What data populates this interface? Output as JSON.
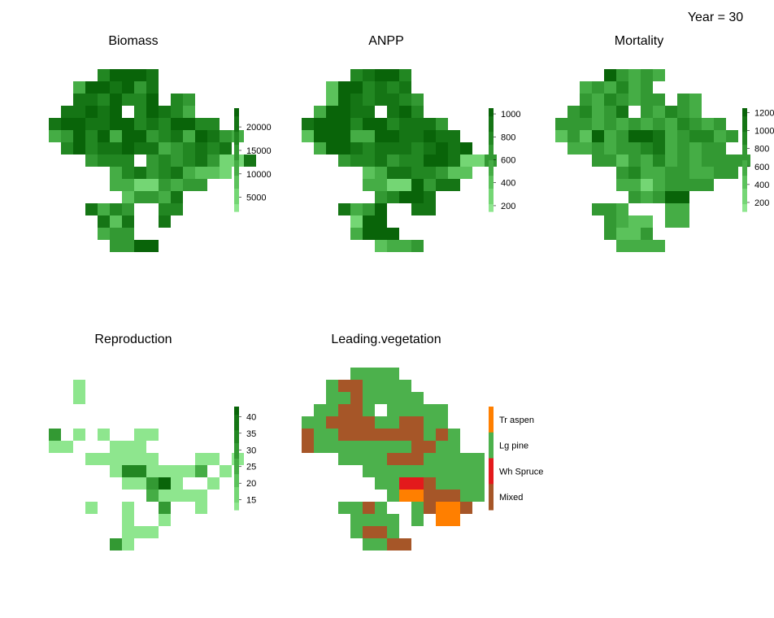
{
  "page": {
    "year_label": "Year = 30"
  },
  "palette": {
    "green_scale": [
      "#8ee68e",
      "#74d674",
      "#5bc25b",
      "#45ad45",
      "#339933",
      "#228722",
      "#157515",
      "#096409"
    ],
    "leading_veg": {
      "Tr aspen": "#ff7f00",
      "Lg pine": "#4cb14c",
      "Wh Spruce": "#e31a1c",
      "Mixed": "#a65628"
    }
  },
  "chart_data": [
    {
      "type": "heatmap",
      "title": "Biomass",
      "legend": {
        "ticks": [
          "5000",
          "10000",
          "15000",
          "20000"
        ],
        "range": [
          2000,
          24000
        ]
      },
      "grid": [
        "..........................",
        "....57776.................",
        "..3776746.................",
        "..6657557.54..............",
        ".66767.57653..............",
        "67766775657755............",
        "3475737745637643..........",
        ".57566766345656...........",
        "...4555.454564116.........",
        ".....3564563221...........",
        ".....33114344.............",
        "......24436...............",
        "...6354..55...............",
        "....626..6................",
        "....344...................",
        ".....4477................."
      ]
    },
    {
      "type": "heatmap",
      "title": "ANPP",
      "legend": {
        "ticks": [
          "200",
          "400",
          "600",
          "800",
          "1000"
        ],
        "range": [
          150,
          1050
        ]
      },
      "grid": [
        "..........................",
        "....56775.................",
        "..2775656.................",
        "..27656654................",
        ".37766.675................",
        "677757756664..............",
        "2777337766766.............",
        ".3776566656767............",
        "...4556455776114..........",
        ".....236655422............",
        ".....33117466.............",
        "......45776...............",
        "...6347..66...............",
        "....177...................",
        "....3777..................",
        "......2334................"
      ]
    },
    {
      "type": "heatmap",
      "title": "Mortality",
      "legend": {
        "ticks": [
          "200",
          "400",
          "600",
          "800",
          "1000",
          "1200"
        ],
        "range": [
          100,
          1250
        ]
      },
      "grid": [
        "..........................",
        "....74343.................",
        "..343534..................",
        "..4354344.43..............",
        ".45346.43543..............",
        "44434343435434............",
        "242734776345534...........",
        ".3343445634344............",
        "...4424353434444..........",
        ".....4533443344...........",
        ".....33134444.............",
        "......43477...............",
        "...443...33...............",
        "....4322.33...............",
        "....4224..................",
        ".....3333................."
      ]
    },
    {
      "type": "heatmap",
      "title": "Reproduction",
      "legend": {
        "ticks": [
          "15",
          "20",
          "25",
          "30",
          "35",
          "40"
        ],
        "range": [
          12,
          43
        ]
      },
      "grid": [
        "..........................",
        "..........................",
        "..0.......................",
        "..0.......................",
        "..........................",
        "..........................",
        "4.0.0..00.................",
        "00...000..................",
        "...000000...00.0..........",
        ".....05500003.0...........",
        "......00470..0............",
        "........30000.............",
        "...0..0..4..0.............",
        "......0..0................",
        "......000.................",
        ".....40..................."
      ]
    },
    {
      "type": "heatmap",
      "title": "Leading.vegetation",
      "legend": {
        "entries": [
          "Tr aspen",
          "Lg pine",
          "Wh Spruce",
          "Mixed"
        ]
      },
      "grid": [
        "..........................",
        "....GGGG..................",
        "..GMMGGGG.................",
        "..GGMGGGGG................",
        ".GGMMG.GGGGG..............",
        "GGMMMMGGMMGG..............",
        "MGGMMMMMMMGMG.............",
        "MGGGGGGGGMMGG.............",
        "...GGGGMMMGGGGG...........",
        ".....GGGGGGGGGG...........",
        "......GGRRMGGGG...........",
        ".......GOOMMMGG............",
        "...GGMG..GMOOM............",
        "....GGGG.G.OO.............",
        "....GMMG..................",
        ".....GGMM................."
      ]
    }
  ]
}
